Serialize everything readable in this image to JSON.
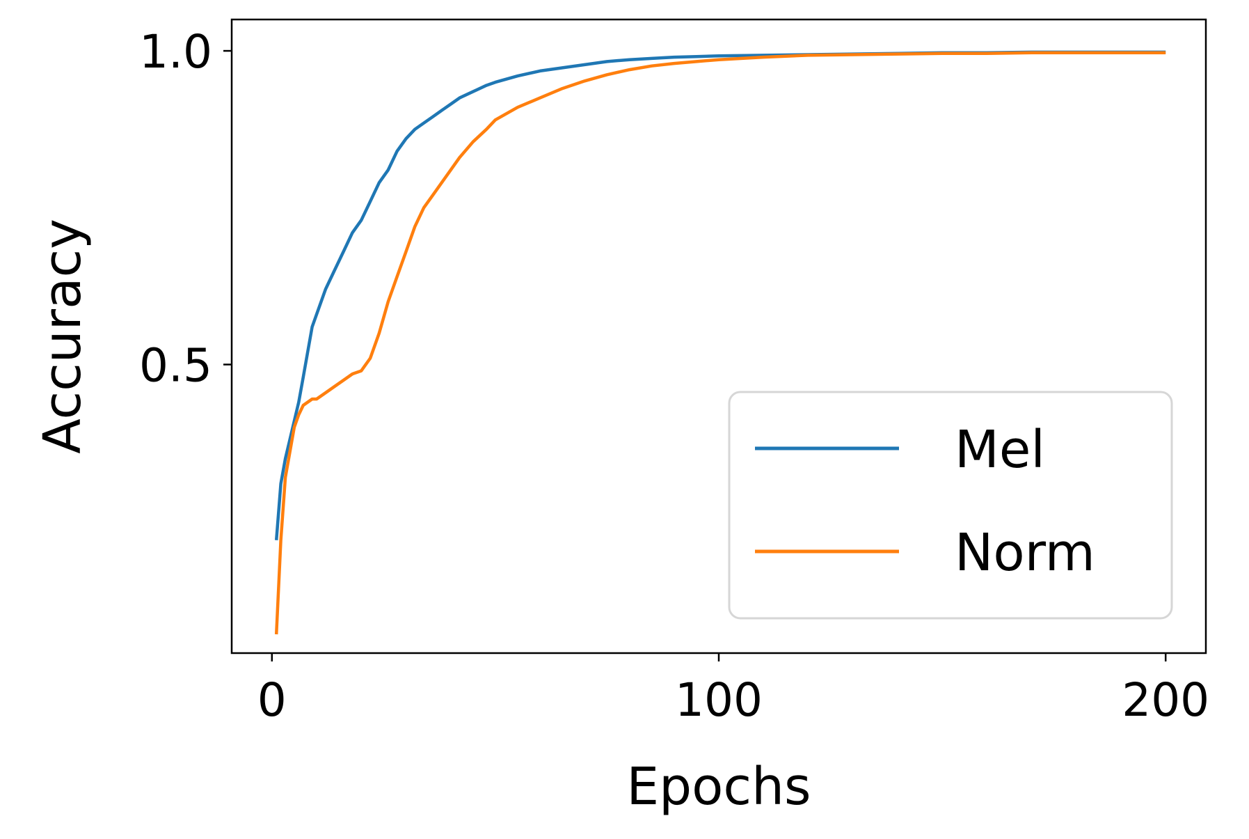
{
  "chart_data": {
    "type": "line",
    "title": "",
    "xlabel": "Epochs",
    "ylabel": "Accuracy",
    "xlim": [
      -9,
      209
    ],
    "ylim": [
      0.04,
      1.05
    ],
    "xticks": [
      0,
      100,
      200
    ],
    "xtick_labels": [
      "0",
      "100",
      "200"
    ],
    "yticks": [
      0.5,
      1.0
    ],
    "ytick_labels": [
      "0.5",
      "1.0"
    ],
    "grid": false,
    "legend": {
      "position": "lower-right",
      "entries": [
        "Mel",
        "Norm"
      ]
    },
    "series": [
      {
        "name": "Mel",
        "color": "#1f77b4",
        "x": [
          1,
          2,
          3,
          4,
          5,
          6,
          7,
          8,
          9,
          10,
          12,
          14,
          16,
          18,
          20,
          22,
          24,
          26,
          28,
          30,
          32,
          34,
          36,
          38,
          40,
          42,
          45,
          48,
          50,
          55,
          60,
          65,
          70,
          75,
          80,
          85,
          90,
          95,
          100,
          110,
          120,
          130,
          140,
          150,
          160,
          170,
          180,
          190,
          200
        ],
        "y": [
          0.22,
          0.31,
          0.35,
          0.38,
          0.41,
          0.44,
          0.48,
          0.52,
          0.56,
          0.58,
          0.62,
          0.65,
          0.68,
          0.71,
          0.73,
          0.76,
          0.79,
          0.81,
          0.84,
          0.86,
          0.875,
          0.885,
          0.895,
          0.905,
          0.915,
          0.925,
          0.935,
          0.945,
          0.95,
          0.96,
          0.968,
          0.973,
          0.978,
          0.983,
          0.986,
          0.988,
          0.99,
          0.991,
          0.992,
          0.993,
          0.994,
          0.995,
          0.996,
          0.997,
          0.997,
          0.998,
          0.998,
          0.998,
          0.998
        ]
      },
      {
        "name": "Norm",
        "color": "#ff7f0e",
        "x": [
          1,
          2,
          3,
          4,
          5,
          6,
          7,
          8,
          9,
          10,
          12,
          14,
          16,
          18,
          20,
          22,
          24,
          26,
          28,
          30,
          32,
          34,
          36,
          38,
          40,
          42,
          45,
          48,
          50,
          55,
          60,
          65,
          70,
          75,
          80,
          85,
          90,
          95,
          100,
          110,
          120,
          130,
          140,
          150,
          160,
          170,
          180,
          190,
          200
        ],
        "y": [
          0.07,
          0.22,
          0.32,
          0.36,
          0.4,
          0.42,
          0.435,
          0.44,
          0.445,
          0.445,
          0.455,
          0.465,
          0.475,
          0.485,
          0.49,
          0.51,
          0.55,
          0.6,
          0.64,
          0.68,
          0.72,
          0.75,
          0.77,
          0.79,
          0.81,
          0.83,
          0.855,
          0.875,
          0.89,
          0.91,
          0.925,
          0.94,
          0.952,
          0.962,
          0.97,
          0.976,
          0.98,
          0.983,
          0.986,
          0.99,
          0.993,
          0.994,
          0.995,
          0.996,
          0.996,
          0.997,
          0.997,
          0.997,
          0.997
        ]
      }
    ]
  }
}
